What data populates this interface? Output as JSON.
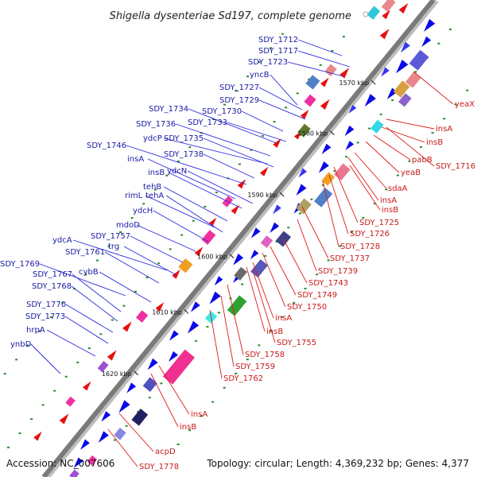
{
  "header": {
    "title": "Shigella dysenteriae Sd197, complete genome"
  },
  "footer": {
    "accession": "Accession: NC_007606",
    "topology": "Topology: circular; Length: 4,369,232 bp; Genes: 4,377"
  },
  "colors": {
    "backbone": "#7a7a7a",
    "forward_gene": "#0a0ae8",
    "reverse_gene": "#e81010",
    "forward_label": "#1a1aa6",
    "reverse_label": "#c81a1a",
    "leader_blue": "#2a2ae0",
    "leader_red": "#e01a1a",
    "dot": "#2a8a2a"
  },
  "map": {
    "kbp_marks": [
      {
        "label": "1570 kbp"
      },
      {
        "label": "1580 kbp"
      },
      {
        "label": "1590 kbp"
      },
      {
        "label": "1600 kbp"
      },
      {
        "label": "1610 kbp"
      },
      {
        "label": "1620 kbp"
      }
    ],
    "forward_labels": [
      {
        "text": "SDY_1712"
      },
      {
        "text": "SDY_1717"
      },
      {
        "text": "SDY_1723"
      },
      {
        "text": "yncB"
      },
      {
        "text": "SDY_1727"
      },
      {
        "text": "SDY_1729"
      },
      {
        "text": "SDY_1730"
      },
      {
        "text": "SDY_1734"
      },
      {
        "text": "SDY_1733"
      },
      {
        "text": "SDY_1736"
      },
      {
        "text": "ydcP"
      },
      {
        "text": "SDY_1735"
      },
      {
        "text": "SDY_1746"
      },
      {
        "text": "SDY_1738"
      },
      {
        "text": "insA"
      },
      {
        "text": "insB"
      },
      {
        "text": "ydcN"
      },
      {
        "text": "tehB"
      },
      {
        "text": "rimL"
      },
      {
        "text": "tehA"
      },
      {
        "text": "ydcH"
      },
      {
        "text": "mdoD"
      },
      {
        "text": "SDY_1757"
      },
      {
        "text": "ydcA"
      },
      {
        "text": "trg"
      },
      {
        "text": "SDY_1761"
      },
      {
        "text": "SDY_1769"
      },
      {
        "text": "cybB"
      },
      {
        "text": "SDY_1767"
      },
      {
        "text": "SDY_1768"
      },
      {
        "text": "SDY_1770"
      },
      {
        "text": "SDY_1773"
      },
      {
        "text": "hrpA"
      },
      {
        "text": "ynbD"
      }
    ],
    "reverse_labels": [
      {
        "text": "yeaX"
      },
      {
        "text": "insA"
      },
      {
        "text": "insB"
      },
      {
        "text": "pabB"
      },
      {
        "text": "SDY_1716"
      },
      {
        "text": "yeaB"
      },
      {
        "text": "sdaA"
      },
      {
        "text": "insA"
      },
      {
        "text": "insB"
      },
      {
        "text": "SDY_1725"
      },
      {
        "text": "SDY_1726"
      },
      {
        "text": "SDY_1728"
      },
      {
        "text": "SDY_1737"
      },
      {
        "text": "SDY_1739"
      },
      {
        "text": "SDY_1743"
      },
      {
        "text": "SDY_1749"
      },
      {
        "text": "SDY_1750"
      },
      {
        "text": "insA"
      },
      {
        "text": "insB"
      },
      {
        "text": "SDY_1755"
      },
      {
        "text": "SDY_1758"
      },
      {
        "text": "SDY_1759"
      },
      {
        "text": "SDY_1762"
      },
      {
        "text": "insA"
      },
      {
        "text": "insB"
      },
      {
        "text": "acpD"
      },
      {
        "text": "SDY_1778"
      }
    ]
  }
}
